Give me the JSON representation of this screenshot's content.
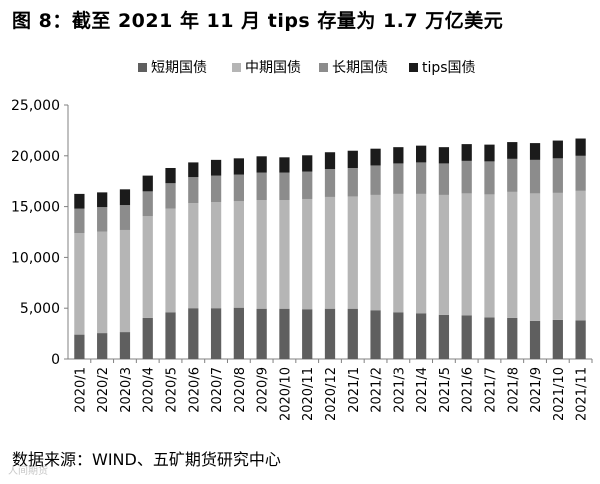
{
  "title": "图 8：截至 2021 年 11 月 tips 存量为 1.7 万亿美元",
  "source": "数据来源：WIND、五矿期货研究中心",
  "watermark": "人间期货",
  "colors": {
    "short": "#5f5f5f",
    "medium": "#b5b5b5",
    "long": "#8c8c8c",
    "tips": "#1b1b1b"
  },
  "chart_data": {
    "type": "bar",
    "stacked": true,
    "categories": [
      "2020/1",
      "2020/2",
      "2020/3",
      "2020/4",
      "2020/5",
      "2020/6",
      "2020/7",
      "2020/8",
      "2020/9",
      "2020/10",
      "2020/11",
      "2020/12",
      "2021/1",
      "2021/2",
      "2021/3",
      "2021/4",
      "2021/5",
      "2021/6",
      "2021/7",
      "2021/8",
      "2021/9",
      "2021/10",
      "2021/11"
    ],
    "series": [
      {
        "name": "短期国债",
        "values": [
          2400,
          2550,
          2650,
          4050,
          4600,
          5000,
          5000,
          5050,
          4950,
          4950,
          4900,
          4950,
          4950,
          4800,
          4600,
          4500,
          4350,
          4300,
          4100,
          4050,
          3750,
          3850,
          3800
        ]
      },
      {
        "name": "中期国债",
        "values": [
          10000,
          10000,
          10050,
          10000,
          10200,
          10350,
          10450,
          10500,
          10700,
          10700,
          10850,
          11000,
          11050,
          11350,
          11650,
          11750,
          11800,
          12000,
          12100,
          12400,
          12550,
          12500,
          12750
        ]
      },
      {
        "name": "长期国债",
        "values": [
          2400,
          2400,
          2450,
          2450,
          2500,
          2550,
          2600,
          2600,
          2700,
          2700,
          2700,
          2750,
          2800,
          2900,
          3000,
          3100,
          3100,
          3200,
          3250,
          3250,
          3300,
          3400,
          3450
        ]
      },
      {
        "name": "tips国债",
        "values": [
          1450,
          1450,
          1550,
          1550,
          1500,
          1450,
          1550,
          1600,
          1600,
          1500,
          1600,
          1650,
          1700,
          1650,
          1600,
          1650,
          1600,
          1650,
          1650,
          1650,
          1650,
          1750,
          1700
        ]
      }
    ],
    "y_ticks": [
      "0",
      "5,000",
      "10,000",
      "15,000",
      "20,000",
      "25,000"
    ],
    "ylim": [
      0,
      25000
    ],
    "grid": false,
    "legend_position": "top"
  }
}
